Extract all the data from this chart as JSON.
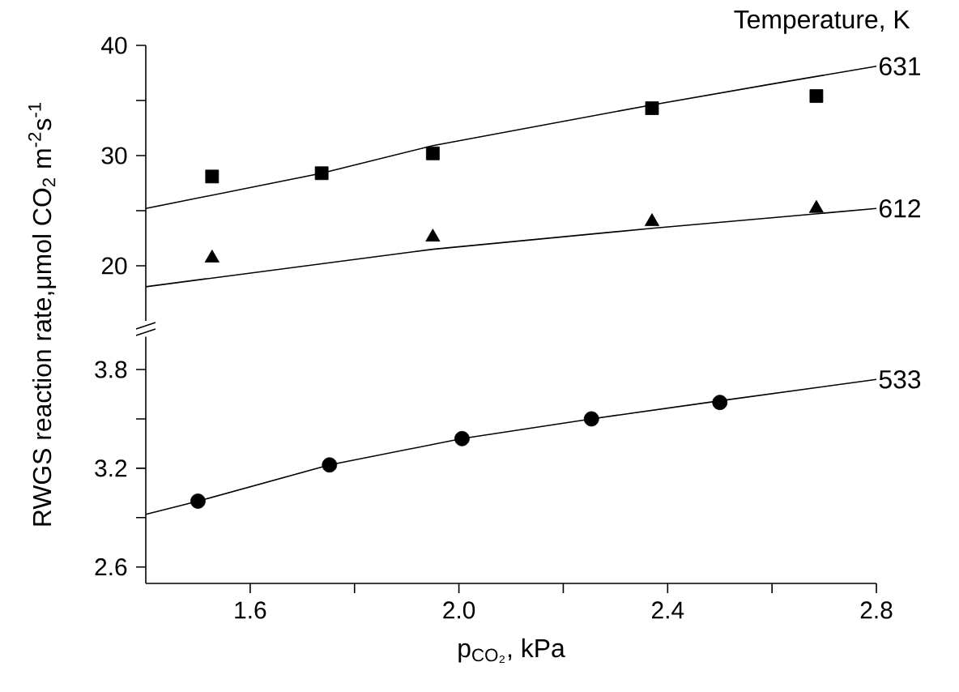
{
  "chart_data": [
    {
      "type": "line",
      "legend_title": "Temperature, K",
      "ylabel": "RWGS reaction rate,μmol CO$_{2}$ m$^{-2}$s$^{-1}$",
      "xlim": [
        1.4,
        2.8
      ],
      "ylim": [
        15,
        40
      ],
      "tick_labels": "y",
      "yticks": [
        {
          "value": 20,
          "label": "20"
        },
        {
          "value": 25,
          "label": null
        },
        {
          "value": 30,
          "label": "30"
        },
        {
          "value": 35,
          "label": null
        },
        {
          "value": 40,
          "label": "40"
        }
      ],
      "series": [
        {
          "name": "631",
          "color": "#000000",
          "x": [
            1.4,
            1.737,
            1.95,
            2.37,
            2.6,
            2.8
          ],
          "values": [
            25.2,
            28.4,
            30.9,
            34.6,
            36.5,
            38.1
          ]
        },
        {
          "type": "scatter",
          "marker": "square",
          "color": "#000000",
          "x": [
            1.527,
            1.737,
            1.95,
            2.37,
            2.685
          ],
          "values": [
            28.1,
            28.4,
            30.2,
            34.3,
            35.4
          ]
        },
        {
          "name": "612",
          "color": "#000000",
          "x": [
            1.4,
            1.95,
            2.37,
            2.8
          ],
          "values": [
            18.1,
            21.5,
            23.4,
            25.2
          ]
        },
        {
          "type": "scatter",
          "marker": "triangle",
          "color": "#000000",
          "x": [
            1.527,
            1.95,
            2.37,
            2.685
          ],
          "values": [
            20.7,
            22.6,
            24.0,
            25.2
          ]
        }
      ]
    },
    {
      "type": "line",
      "xlabel": "p$_{CO₂}$, kPa",
      "xlim": [
        1.4,
        2.8
      ],
      "ylim": [
        2.5,
        4.0
      ],
      "xticks": [
        {
          "value": 1.6,
          "label": "1.6"
        },
        {
          "value": 1.8,
          "label": null
        },
        {
          "value": 2.0,
          "label": "2.0"
        },
        {
          "value": 2.2,
          "label": null
        },
        {
          "value": 2.4,
          "label": "2.4"
        },
        {
          "value": 2.6,
          "label": null
        },
        {
          "value": 2.8,
          "label": "2.8"
        }
      ],
      "yticks": [
        {
          "value": 2.6,
          "label": "2.6"
        },
        {
          "value": 2.9,
          "label": null
        },
        {
          "value": 3.2,
          "label": "3.2"
        },
        {
          "value": 3.5,
          "label": null
        },
        {
          "value": 3.8,
          "label": "3.8"
        }
      ],
      "series": [
        {
          "name": "533",
          "color": "#000000",
          "x": [
            1.4,
            1.5,
            1.752,
            2.006,
            2.254,
            2.5,
            2.8
          ],
          "values": [
            2.92,
            3.0,
            3.22,
            3.38,
            3.5,
            3.61,
            3.74
          ]
        },
        {
          "type": "scatter",
          "marker": "circle",
          "color": "#000000",
          "x": [
            1.5,
            1.752,
            2.006,
            2.254,
            2.5
          ],
          "values": [
            3.0,
            3.22,
            3.38,
            3.5,
            3.6
          ]
        }
      ]
    }
  ]
}
